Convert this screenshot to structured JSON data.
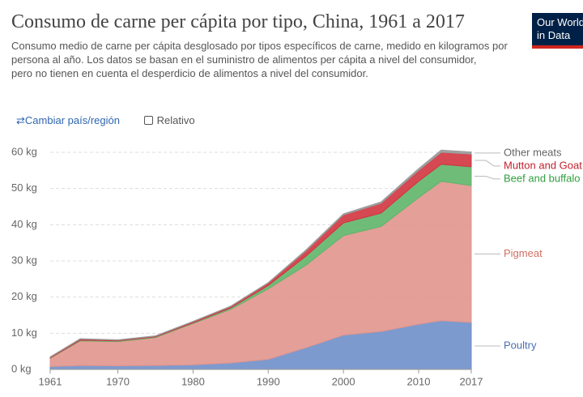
{
  "header": {
    "title": "Consumo de carne per cápita por tipo, China, 1961 a 2017",
    "subtitle": [
      "Consumo medio de carne per cápita desglosado por tipos específicos de carne, medido en kilogramos por persona al año. Los datos se basan en el suministro de alimentos per cápita a nivel del consumidor,",
      "pero no tienen en cuenta el desperdicio de alimentos a nivel del consumidor."
    ]
  },
  "controls": {
    "change_country": "Cambiar país/región",
    "relative": "Relativo"
  },
  "logo": [
    "Our World",
    "in Data"
  ],
  "chart_data": {
    "type": "stacked-area",
    "x": [
      1961,
      1965,
      1970,
      1975,
      1980,
      1985,
      1990,
      1995,
      2000,
      2005,
      2010,
      2013,
      2017
    ],
    "series": [
      {
        "name": "Poultry",
        "color": "#6f8fc9",
        "values": [
          0.8,
          1.1,
          1.0,
          1.1,
          1.3,
          1.8,
          2.8,
          6.0,
          9.5,
          10.5,
          12.5,
          13.5,
          13.0
        ]
      },
      {
        "name": "Pigmeat",
        "color": "#e0958d",
        "values": [
          2.3,
          6.8,
          6.7,
          7.7,
          11.4,
          14.8,
          19.5,
          22.8,
          27.5,
          29.0,
          35.0,
          38.5,
          37.8
        ]
      },
      {
        "name": "Beef and buffalo",
        "color": "#5fb56a",
        "values": [
          0.1,
          0.2,
          0.2,
          0.2,
          0.2,
          0.4,
          0.9,
          2.5,
          3.5,
          3.7,
          4.5,
          4.7,
          5.2
        ]
      },
      {
        "name": "Mutton and Goat",
        "color": "#d2343f",
        "values": [
          0.2,
          0.3,
          0.2,
          0.2,
          0.3,
          0.4,
          0.7,
          1.4,
          2.2,
          2.7,
          3.0,
          3.3,
          3.5
        ]
      },
      {
        "name": "Other meats",
        "color": "#9a9a9a",
        "values": [
          0.1,
          0.1,
          0.1,
          0.1,
          0.1,
          0.1,
          0.1,
          0.3,
          0.3,
          0.4,
          0.5,
          0.6,
          0.6
        ]
      }
    ],
    "xlim": [
      1961,
      2017
    ],
    "xticks": [
      1961,
      1970,
      1980,
      1990,
      2000,
      2010,
      2017
    ],
    "ylim": [
      0,
      60
    ],
    "yticks": [
      {
        "value": 0,
        "label": "0 kg"
      },
      {
        "value": 10,
        "label": "10 kg"
      },
      {
        "value": 20,
        "label": "20 kg"
      },
      {
        "value": 30,
        "label": "30 kg"
      },
      {
        "value": 40,
        "label": "40 kg"
      },
      {
        "value": 50,
        "label": "50 kg"
      },
      {
        "value": 60,
        "label": "60 kg"
      }
    ],
    "grid": true
  }
}
